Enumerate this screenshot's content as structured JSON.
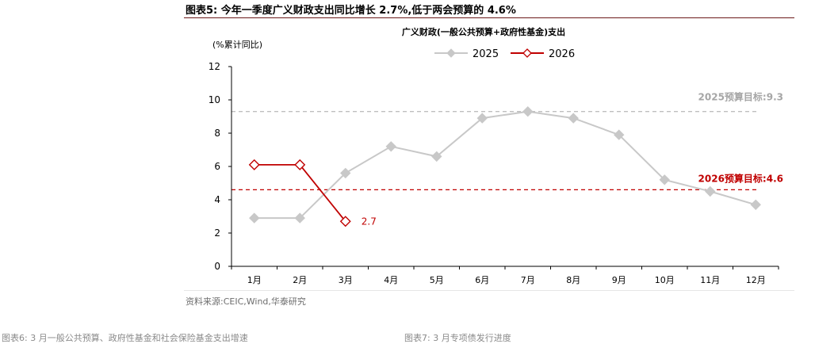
{
  "figure": {
    "title": "图表5:  今年一季度广义财政支出同比增长 2.7%,低于两会预算的 4.6%",
    "source": "资料来源:CEIC,Wind,华泰研究",
    "next_left": "图表6:  3 月一般公共预算、政府性基金和社会保险基金支出增速",
    "next_right": "图表7:  3 月专项债发行进度"
  },
  "colors": {
    "series_2025": "#c8c8c8",
    "series_2026": "#c00000",
    "target_2025": "#bfbfbf",
    "target_2026": "#c00000",
    "label_2025_target": "#a6a6a6",
    "axis": "#000000"
  },
  "chart_data": {
    "type": "line",
    "title": "广义财政(一般公共预算+政府性基金)支出",
    "ylabel": "(%累计同比)",
    "xlabel": "",
    "categories": [
      "1月",
      "2月",
      "3月",
      "4月",
      "5月",
      "6月",
      "7月",
      "8月",
      "9月",
      "10月",
      "11月",
      "12月"
    ],
    "ylim": [
      0,
      12
    ],
    "yticks": [
      0,
      2,
      4,
      6,
      8,
      10,
      12
    ],
    "grid": false,
    "legend": "top-center",
    "series": [
      {
        "name": "2025",
        "marker": "diamond-filled",
        "values": [
          2.9,
          2.9,
          5.6,
          7.2,
          6.6,
          8.9,
          9.3,
          8.9,
          7.9,
          5.2,
          4.5,
          3.7
        ]
      },
      {
        "name": "2026",
        "marker": "diamond-open",
        "values": [
          6.1,
          6.1,
          2.7,
          null,
          null,
          null,
          null,
          null,
          null,
          null,
          null,
          null
        ]
      }
    ],
    "reference_lines": [
      {
        "label": "2025预算目标:9.3",
        "value": 9.3,
        "style": "dashed"
      },
      {
        "label": "2026预算目标:4.6",
        "value": 4.6,
        "style": "dashed"
      }
    ],
    "annotations": [
      {
        "text": "2.7",
        "series": "2026",
        "category": "3月"
      }
    ]
  }
}
